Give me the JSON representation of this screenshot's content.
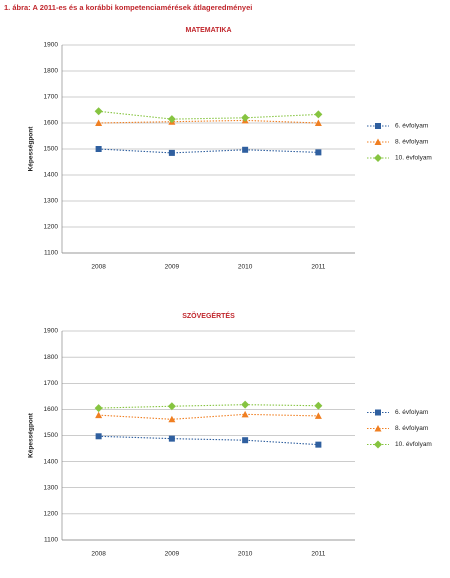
{
  "title": "1. ábra: A 2011-es és a korábbi kompetenciamérések átlageredményei",
  "chart_data": [
    {
      "type": "line",
      "title": "MATEMATIKA",
      "y_label": "Képességpont",
      "categories": [
        "2008",
        "2009",
        "2010",
        "2011"
      ],
      "ylim": [
        1100,
        1900
      ],
      "yticks": [
        1100,
        1200,
        1300,
        1400,
        1500,
        1600,
        1700,
        1800,
        1900
      ],
      "grid": true,
      "legend": "right",
      "series": [
        {
          "name": "6. évfolyam",
          "color": "#2f5f9f",
          "marker": "square",
          "values": [
            1500,
            1485,
            1497,
            1487
          ]
        },
        {
          "name": "8. évfolyam",
          "color": "#f07f22",
          "marker": "triangle",
          "values": [
            1600,
            1605,
            1610,
            1600
          ]
        },
        {
          "name": "10. évfolyam",
          "color": "#86c440",
          "marker": "diamond",
          "values": [
            1645,
            1615,
            1620,
            1633
          ]
        }
      ]
    },
    {
      "type": "line",
      "title": "SZÖVEGÉRTÉS",
      "y_label": "Képességpont",
      "categories": [
        "2008",
        "2009",
        "2010",
        "2011"
      ],
      "ylim": [
        1100,
        1900
      ],
      "yticks": [
        1100,
        1200,
        1300,
        1400,
        1500,
        1600,
        1700,
        1800,
        1900
      ],
      "grid": true,
      "legend": "right",
      "series": [
        {
          "name": "6. évfolyam",
          "color": "#2f5f9f",
          "marker": "square",
          "values": [
            1497,
            1488,
            1482,
            1465
          ]
        },
        {
          "name": "8. évfolyam",
          "color": "#f07f22",
          "marker": "triangle",
          "values": [
            1578,
            1562,
            1581,
            1575
          ]
        },
        {
          "name": "10. évfolyam",
          "color": "#86c440",
          "marker": "diamond",
          "values": [
            1605,
            1612,
            1618,
            1614
          ]
        }
      ]
    }
  ]
}
